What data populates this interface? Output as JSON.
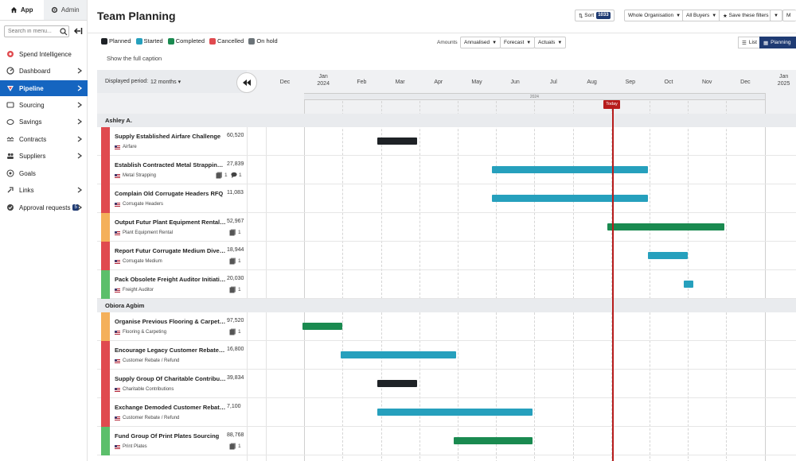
{
  "sidebar": {
    "tabs": [
      {
        "label": "App",
        "icon": "home-icon"
      },
      {
        "label": "Admin",
        "icon": "gear-icon"
      }
    ],
    "search_placeholder": "Search in menu...",
    "items": [
      {
        "label": "Spend Intelligence",
        "icon": "spend-intelligence-icon",
        "chevron": false
      },
      {
        "label": "Dashboard",
        "icon": "dashboard-icon",
        "chevron": true
      },
      {
        "label": "Pipeline",
        "icon": "pipeline-icon",
        "chevron": true,
        "active": true
      },
      {
        "label": "Sourcing",
        "icon": "sourcing-icon",
        "chevron": true
      },
      {
        "label": "Savings",
        "icon": "savings-icon",
        "chevron": true
      },
      {
        "label": "Contracts",
        "icon": "contracts-icon",
        "chevron": true
      },
      {
        "label": "Suppliers",
        "icon": "suppliers-icon",
        "chevron": true
      },
      {
        "label": "Goals",
        "icon": "goals-icon",
        "chevron": false
      },
      {
        "label": "Links",
        "icon": "links-icon",
        "chevron": true
      },
      {
        "label": "Approval requests",
        "icon": "approval-icon",
        "chevron": true,
        "badge": "5"
      }
    ]
  },
  "header": {
    "title": "Team Planning",
    "sort_label": "Sort",
    "sort_count": "1033",
    "org_label": "Whole Organisation",
    "buyers_label": "All Buyers",
    "save_filters_label": "Save these filters",
    "more_label": "M"
  },
  "legend": [
    {
      "label": "Planned",
      "color": "#1e2226"
    },
    {
      "label": "Started",
      "color": "#26a0bd"
    },
    {
      "label": "Completed",
      "color": "#1a8a50"
    },
    {
      "label": "Cancelled",
      "color": "#e04a4f"
    },
    {
      "label": "On hold",
      "color": "#6b7378"
    }
  ],
  "caption_link": "Show the full caption",
  "amounts": {
    "label": "Amounts",
    "annualised": "Annualised",
    "forecast": "Forecast",
    "actuals": "Actuals"
  },
  "views": {
    "list": "List",
    "planning": "Planning"
  },
  "gantt": {
    "period_label": "Displayed period:",
    "period_value": "12 months",
    "months": [
      "Dec",
      "Jan",
      "Feb",
      "Mar",
      "Apr",
      "May",
      "Jun",
      "Jul",
      "Aug",
      "Sep",
      "Oct",
      "Nov",
      "Dec",
      "Jan"
    ],
    "month_years": {
      "1": "2024",
      "13": "2025"
    },
    "year_band": "2024",
    "today_label": "Today",
    "today_month": 9.05,
    "groups": [
      {
        "name": "Ashley A.",
        "tasks": [
          {
            "title": "Supply Established Airfare Challenge",
            "value": "60,520",
            "category": "Airfare",
            "status_color": "#e04a4f",
            "bar_color": "#1e2226",
            "bar_start": 2.9,
            "bar_end": 3.95,
            "docs": "",
            "comments": ""
          },
          {
            "title": "Establish Contracted Metal Strapping Ch...",
            "value": "27,839",
            "category": "Metal Strapping",
            "status_color": "#e04a4f",
            "bar_color": "#26a0bd",
            "bar_start": 5.9,
            "bar_end": 9.95,
            "docs": "1",
            "comments": "1"
          },
          {
            "title": "Complain Old Corrugate Headers RFQ",
            "value": "11,083",
            "category": "Corrugate Headers",
            "status_color": "#e04a4f",
            "bar_color": "#26a0bd",
            "bar_start": 5.9,
            "bar_end": 9.95,
            "docs": "",
            "comments": ""
          },
          {
            "title": "Output Futur Plant Equipment Rental So...",
            "value": "52,967",
            "category": "Plant Equipment Rental",
            "status_color": "#f4b05a",
            "bar_color": "#1a8a50",
            "bar_start": 8.9,
            "bar_end": 11.95,
            "docs": "1",
            "comments": ""
          },
          {
            "title": "Report Futur Corrugate Medium Diversity",
            "value": "18,944",
            "category": "Corrugate Medium",
            "status_color": "#e04a4f",
            "bar_color": "#26a0bd",
            "bar_start": 9.95,
            "bar_end": 11.0,
            "docs": "1",
            "comments": ""
          },
          {
            "title": "Pack Obsolete Freight Auditor Initiative",
            "value": "20,030",
            "category": "Freight Auditor",
            "status_color": "#5cbf6b",
            "bar_color": "#26a0bd",
            "bar_start": 10.9,
            "bar_end": 11.15,
            "docs": "1",
            "comments": ""
          }
        ]
      },
      {
        "name": "Obiora Agbim",
        "tasks": [
          {
            "title": "Organise Previous Flooring & Carpeting ...",
            "value": "97,520",
            "category": "Flooring & Carpeting",
            "status_color": "#f4b05a",
            "bar_color": "#1a8a50",
            "bar_start": 0.95,
            "bar_end": 2.0,
            "docs": "1",
            "comments": ""
          },
          {
            "title": "Encourage Legacy Customer Rebate / Re...",
            "value": "16,800",
            "category": "Customer Rebate / Refund",
            "status_color": "#e04a4f",
            "bar_color": "#26a0bd",
            "bar_start": 1.95,
            "bar_end": 4.95,
            "docs": "",
            "comments": ""
          },
          {
            "title": "Supply Group Of Charitable Contributio...",
            "value": "39,834",
            "category": "Charitable Contributions",
            "status_color": "#e04a4f",
            "bar_color": "#1e2226",
            "bar_start": 2.9,
            "bar_end": 3.95,
            "docs": "",
            "comments": ""
          },
          {
            "title": "Exchange Demoded Customer Rebate / R...",
            "value": "7,100",
            "category": "Customer Rebate / Refund",
            "status_color": "#e04a4f",
            "bar_color": "#26a0bd",
            "bar_start": 2.9,
            "bar_end": 6.95,
            "docs": "",
            "comments": ""
          },
          {
            "title": "Fund Group Of Print Plates Sourcing",
            "value": "88,768",
            "category": "Print Plates",
            "status_color": "#5cbf6b",
            "bar_color": "#1a8a50",
            "bar_start": 4.9,
            "bar_end": 6.95,
            "docs": "1",
            "comments": ""
          }
        ]
      }
    ]
  }
}
